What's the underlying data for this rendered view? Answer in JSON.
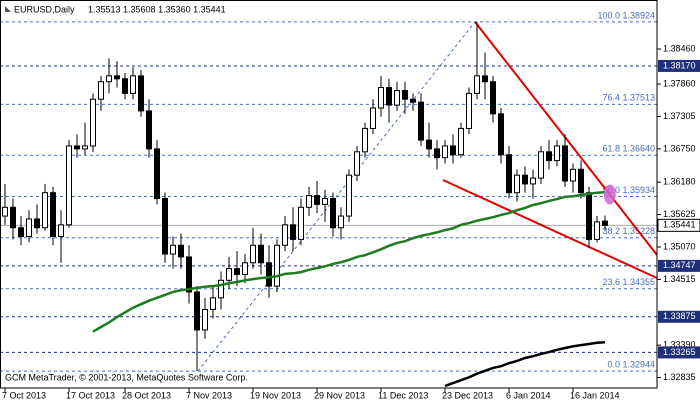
{
  "chart_data": {
    "type": "candlestick",
    "title": "EURUSD,Daily",
    "ohlc_text": "1.35513 1.35608 1.35360 1.35441",
    "footer": "GCM MetaTrader, © 2001-2013, MetaQuotes Software Corp.",
    "categories": [
      "7 Oct 2013",
      null,
      null,
      null,
      null,
      null,
      null,
      null,
      "17 Oct 2013",
      null,
      null,
      null,
      null,
      null,
      null,
      "28 Oct 2013",
      null,
      null,
      null,
      null,
      null,
      null,
      null,
      "7 Nov 2013",
      null,
      null,
      null,
      null,
      null,
      null,
      null,
      "19 Nov 2013",
      null,
      null,
      null,
      null,
      null,
      null,
      null,
      "29 Nov 2013",
      null,
      null,
      null,
      null,
      null,
      null,
      null,
      "11 Dec 2013",
      null,
      null,
      null,
      null,
      null,
      null,
      null,
      "23 Dec 2013",
      null,
      null,
      null,
      null,
      null,
      null,
      null,
      "6 Jan 2014",
      null,
      null,
      null,
      null,
      null,
      null,
      null,
      "16 Jan 2014",
      null,
      null,
      null,
      null
    ],
    "candles": {
      "open": [
        1.356,
        1.3575,
        1.354,
        1.3525,
        1.3555,
        1.354,
        1.36,
        1.3525,
        1.3545,
        1.368,
        1.3675,
        1.368,
        1.376,
        1.379,
        1.38,
        1.3795,
        1.377,
        1.38,
        1.374,
        1.3675,
        1.359,
        1.3495,
        1.351,
        1.349,
        1.343,
        1.3365,
        1.34,
        1.342,
        1.345,
        1.347,
        1.346,
        1.348,
        1.351,
        1.348,
        1.344,
        1.351,
        1.3545,
        1.352,
        1.3575,
        1.3595,
        1.358,
        1.359,
        1.354,
        1.356,
        1.363,
        1.367,
        1.371,
        1.3745,
        1.378,
        1.375,
        1.3775,
        1.376,
        1.3755,
        1.369,
        1.3675,
        1.366,
        1.368,
        1.3665,
        1.371,
        1.377,
        1.38,
        1.379,
        1.3735,
        1.3665,
        1.36,
        1.363,
        1.3615,
        1.3625,
        1.367,
        1.3655,
        1.368,
        1.362,
        1.364,
        1.36,
        1.352,
        1.35513
      ],
      "high": [
        1.3615,
        1.359,
        1.356,
        1.357,
        1.358,
        1.3615,
        1.361,
        1.357,
        1.369,
        1.37,
        1.372,
        1.377,
        1.38,
        1.383,
        1.3825,
        1.3805,
        1.3815,
        1.381,
        1.376,
        1.369,
        1.36,
        1.3525,
        1.353,
        1.351,
        1.344,
        1.342,
        1.344,
        1.3465,
        1.349,
        1.35,
        1.3495,
        1.354,
        1.353,
        1.351,
        1.352,
        1.356,
        1.3575,
        1.359,
        1.361,
        1.362,
        1.3605,
        1.36,
        1.3575,
        1.364,
        1.368,
        1.372,
        1.376,
        1.38,
        1.3795,
        1.379,
        1.379,
        1.377,
        1.377,
        1.372,
        1.369,
        1.369,
        1.37,
        1.372,
        1.378,
        1.3892,
        1.384,
        1.38,
        1.3745,
        1.368,
        1.364,
        1.3645,
        1.364,
        1.368,
        1.369,
        1.369,
        1.37,
        1.365,
        1.3655,
        1.361,
        1.356,
        1.35608
      ],
      "low": [
        1.3545,
        1.352,
        1.351,
        1.3515,
        1.353,
        1.3535,
        1.351,
        1.348,
        1.354,
        1.366,
        1.3665,
        1.367,
        1.374,
        1.377,
        1.378,
        1.376,
        1.376,
        1.373,
        1.366,
        1.358,
        1.348,
        1.347,
        1.347,
        1.341,
        1.3295,
        1.335,
        1.3385,
        1.34,
        1.3435,
        1.344,
        1.3445,
        1.347,
        1.346,
        1.342,
        1.343,
        1.35,
        1.35,
        1.351,
        1.356,
        1.3565,
        1.355,
        1.3525,
        1.352,
        1.355,
        1.362,
        1.366,
        1.37,
        1.373,
        1.372,
        1.374,
        1.3735,
        1.374,
        1.368,
        1.366,
        1.364,
        1.365,
        1.365,
        1.366,
        1.37,
        1.376,
        1.376,
        1.372,
        1.365,
        1.359,
        1.3585,
        1.36,
        1.359,
        1.3615,
        1.364,
        1.3645,
        1.361,
        1.36,
        1.359,
        1.3505,
        1.3515,
        1.3536
      ],
      "close": [
        1.3575,
        1.354,
        1.3525,
        1.3555,
        1.354,
        1.36,
        1.3525,
        1.3545,
        1.368,
        1.3675,
        1.368,
        1.376,
        1.379,
        1.38,
        1.3795,
        1.377,
        1.38,
        1.374,
        1.3675,
        1.359,
        1.3495,
        1.351,
        1.349,
        1.343,
        1.3365,
        1.34,
        1.342,
        1.345,
        1.347,
        1.346,
        1.348,
        1.351,
        1.348,
        1.344,
        1.351,
        1.3545,
        1.352,
        1.3575,
        1.3595,
        1.358,
        1.359,
        1.354,
        1.356,
        1.363,
        1.367,
        1.371,
        1.3745,
        1.378,
        1.375,
        1.3775,
        1.376,
        1.3755,
        1.369,
        1.3675,
        1.366,
        1.368,
        1.3665,
        1.371,
        1.377,
        1.38,
        1.379,
        1.3735,
        1.3665,
        1.36,
        1.363,
        1.3615,
        1.3625,
        1.367,
        1.3655,
        1.368,
        1.362,
        1.364,
        1.36,
        1.352,
        1.355,
        1.35441
      ]
    },
    "series": [
      {
        "color": "#1e7b1e",
        "values": [
          null,
          null,
          null,
          null,
          null,
          null,
          null,
          null,
          null,
          null,
          null,
          1.3362,
          1.337,
          1.3378,
          1.3387,
          1.3395,
          1.3403,
          1.3409,
          1.3415,
          1.342,
          1.3425,
          1.343,
          1.3433,
          1.3435,
          1.3437,
          1.3439,
          1.344,
          1.3442,
          1.3445,
          1.3447,
          1.345,
          1.3452,
          1.3454,
          1.3455,
          1.3457,
          1.3461,
          1.3462,
          1.3464,
          1.3468,
          1.3471,
          1.3474,
          1.3478,
          1.3481,
          1.3485,
          1.349,
          1.3493,
          1.3498,
          1.3503,
          1.3509,
          1.3514,
          1.3517,
          1.3522,
          1.3526,
          1.3529,
          1.3532,
          1.3536,
          1.3539,
          1.3545,
          1.3548,
          1.3552,
          1.3555,
          1.3558,
          1.3562,
          1.3565,
          1.357,
          1.3574,
          1.3579,
          1.3582,
          1.3586,
          1.3589,
          1.3593,
          1.3594,
          1.3596,
          1.3598,
          1.36,
          1.3601
        ]
      },
      {
        "color": "#000000",
        "values": [
          null,
          null,
          null,
          null,
          null,
          null,
          null,
          null,
          null,
          null,
          null,
          null,
          null,
          null,
          null,
          null,
          null,
          null,
          null,
          null,
          null,
          null,
          null,
          null,
          null,
          null,
          null,
          null,
          null,
          null,
          null,
          null,
          null,
          null,
          null,
          null,
          null,
          null,
          null,
          null,
          null,
          null,
          null,
          null,
          null,
          null,
          null,
          null,
          null,
          null,
          null,
          null,
          null,
          null,
          null,
          1.3269,
          1.3274,
          1.3279,
          1.3284,
          1.329,
          1.3295,
          1.33,
          1.3303,
          1.3308,
          1.3312,
          1.3317,
          1.332,
          1.3324,
          1.3327,
          1.3331,
          1.3334,
          1.3337,
          1.3339,
          1.3341,
          1.3343,
          1.3344
        ]
      }
    ],
    "xlim": [
      -0.625,
      81.5
    ],
    "ylim": [
      1.32656,
      1.39299
    ],
    "yticks": [
      {
        "value": 1.3846,
        "label": "1.38460"
      },
      {
        "value": 1.3786,
        "label": "1.37860"
      },
      {
        "value": 1.37305,
        "label": "1.37305"
      },
      {
        "value": 1.3675,
        "label": "1.36750"
      },
      {
        "value": 1.3618,
        "label": "1.36180"
      },
      {
        "value": 1.35625,
        "label": "1.35625"
      },
      {
        "value": 1.3507,
        "label": "1.35070"
      },
      {
        "value": 1.34515,
        "label": "1.34515"
      },
      {
        "value": 1.3339,
        "label": "1.33390"
      },
      {
        "value": 1.32835,
        "label": "1.32835"
      }
    ],
    "fib_levels": [
      {
        "value": 1.38924,
        "label": "100.0 1.38924"
      },
      {
        "value": 1.37513,
        "label": "76.4 1.37513"
      },
      {
        "value": 1.3664,
        "label": "61.8 1.36640"
      },
      {
        "value": 1.35934,
        "label": "50.0 1.35934"
      },
      {
        "value": 1.35228,
        "label": "38.2 1.35228"
      },
      {
        "value": 1.34355,
        "label": "23.6 1.34355"
      },
      {
        "value": 1.32944,
        "label": "0.0 1.32944"
      }
    ],
    "price_levels": [
      {
        "value": 1.3817,
        "label": "1.38170"
      },
      {
        "value": 1.34747,
        "label": "1.34747"
      },
      {
        "value": 1.33875,
        "label": "1.33875"
      },
      {
        "value": 1.33265,
        "label": "1.33265"
      }
    ],
    "current_price": {
      "value": 1.35441,
      "label": "1.35441"
    },
    "trendlines": [
      {
        "color": "#e00000",
        "dash": false,
        "x": [
          58.75,
          81.5
        ],
        "y": [
          1.38924,
          1.34933
        ]
      },
      {
        "color": "#e00000",
        "dash": false,
        "x": [
          54.75,
          81.5
        ],
        "y": [
          1.36217,
          1.34539
        ]
      },
      {
        "color": "#4a6fb5",
        "dash": true,
        "x": [
          24.1,
          58.75
        ],
        "y": [
          1.32944,
          1.38924
        ]
      }
    ],
    "marker": {
      "x": 75.6,
      "y": 1.3597,
      "color": "#cc66cc"
    }
  }
}
